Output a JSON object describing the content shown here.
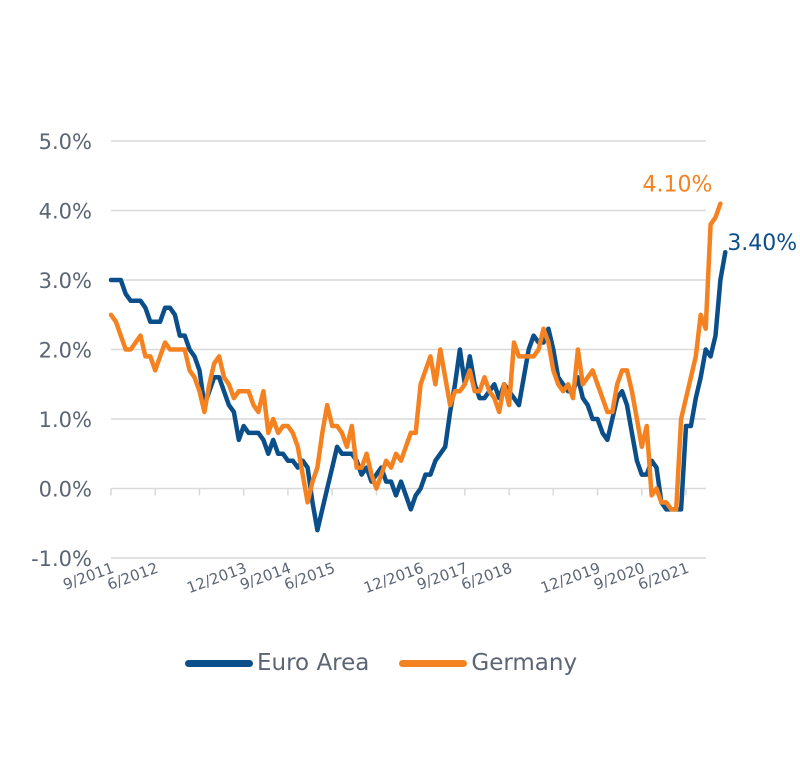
{
  "chart_data": {
    "type": "line",
    "title": "",
    "xlabel": "",
    "ylabel": "",
    "ylim": [
      -1.0,
      5.0
    ],
    "yticks": [
      "-1.0%",
      "0.0%",
      "1.0%",
      "2.0%",
      "3.0%",
      "4.0%",
      "5.0%"
    ],
    "ytick_values": [
      -1,
      0,
      1,
      2,
      3,
      4,
      5
    ],
    "grid": true,
    "legend_position": "bottom",
    "x_start": "9/2011",
    "x_frequency": "monthly",
    "xtick_labels": [
      "9/2011",
      "6/2012",
      "12/2013",
      "9/2014",
      "6/2015",
      "12/2016",
      "9/2017",
      "6/2018",
      "12/2019",
      "9/2020",
      "6/2021"
    ],
    "xtick_month_index": [
      0,
      9,
      27,
      36,
      45,
      63,
      72,
      81,
      99,
      108,
      117
    ],
    "series": [
      {
        "name": "Euro Area",
        "color": "#0b4f8a",
        "end_label": "3.40%",
        "values": [
          3.0,
          3.0,
          3.0,
          2.8,
          2.7,
          2.7,
          2.7,
          2.6,
          2.4,
          2.4,
          2.4,
          2.6,
          2.6,
          2.5,
          2.2,
          2.2,
          2.0,
          1.9,
          1.7,
          1.2,
          1.4,
          1.6,
          1.6,
          1.4,
          1.2,
          1.1,
          0.7,
          0.9,
          0.8,
          0.8,
          0.8,
          0.7,
          0.5,
          0.7,
          0.5,
          0.5,
          0.4,
          0.4,
          0.3,
          0.4,
          0.3,
          -0.2,
          -0.6,
          -0.3,
          0.0,
          0.3,
          0.6,
          0.5,
          0.5,
          0.5,
          0.4,
          0.2,
          0.3,
          0.1,
          0.2,
          0.3,
          0.1,
          0.1,
          -0.1,
          0.1,
          -0.1,
          -0.3,
          -0.1,
          0.0,
          0.2,
          0.2,
          0.4,
          0.5,
          0.6,
          1.1,
          1.5,
          2.0,
          1.5,
          1.9,
          1.5,
          1.3,
          1.3,
          1.4,
          1.5,
          1.3,
          1.5,
          1.4,
          1.3,
          1.2,
          1.6,
          2.0,
          2.2,
          2.1,
          2.1,
          2.3,
          2.0,
          1.6,
          1.5,
          1.4,
          1.4,
          1.6,
          1.3,
          1.2,
          1.0,
          1.0,
          0.8,
          0.7,
          1.0,
          1.3,
          1.4,
          1.2,
          0.8,
          0.4,
          0.2,
          0.2,
          0.4,
          0.3,
          -0.2,
          -0.3,
          -0.3,
          -0.3,
          -0.3,
          0.9,
          0.9,
          1.3,
          1.6,
          2.0,
          1.9,
          2.2,
          3.0,
          3.4
        ]
      },
      {
        "name": "Germany",
        "color": "#f58220",
        "end_label": "4.10%",
        "values": [
          2.5,
          2.4,
          2.2,
          2.0,
          2.0,
          2.1,
          2.2,
          1.9,
          1.9,
          1.7,
          1.9,
          2.1,
          2.0,
          2.0,
          2.0,
          2.0,
          1.7,
          1.6,
          1.4,
          1.1,
          1.5,
          1.8,
          1.9,
          1.6,
          1.5,
          1.3,
          1.4,
          1.4,
          1.4,
          1.2,
          1.1,
          1.4,
          0.8,
          1.0,
          0.8,
          0.9,
          0.9,
          0.8,
          0.6,
          0.2,
          -0.2,
          0.1,
          0.3,
          0.8,
          1.2,
          0.9,
          0.9,
          0.8,
          0.6,
          0.9,
          0.3,
          0.3,
          0.5,
          0.2,
          0.0,
          0.2,
          0.4,
          0.3,
          0.5,
          0.4,
          0.6,
          0.8,
          0.8,
          1.5,
          1.7,
          1.9,
          1.5,
          2.0,
          1.6,
          1.2,
          1.4,
          1.4,
          1.5,
          1.7,
          1.4,
          1.4,
          1.6,
          1.4,
          1.3,
          1.1,
          1.5,
          1.2,
          2.1,
          1.9,
          1.9,
          1.9,
          1.9,
          2.0,
          2.3,
          2.1,
          1.7,
          1.5,
          1.4,
          1.5,
          1.3,
          2.0,
          1.5,
          1.6,
          1.7,
          1.5,
          1.3,
          1.1,
          1.1,
          1.5,
          1.7,
          1.7,
          1.4,
          1.0,
          0.6,
          0.9,
          -0.1,
          0.0,
          -0.2,
          -0.2,
          -0.3,
          -0.3,
          1.0,
          1.3,
          1.6,
          1.9,
          2.5,
          2.3,
          3.8,
          3.9,
          4.1
        ]
      }
    ]
  }
}
